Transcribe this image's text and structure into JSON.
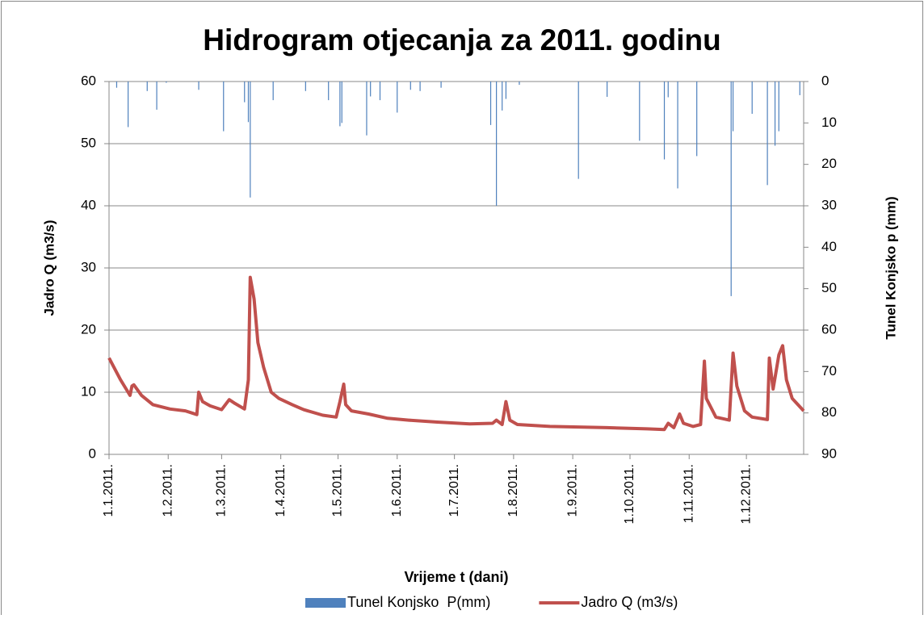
{
  "chart_data": {
    "type": "combo",
    "title": "Hidrogram otjecanja za 2011. godinu",
    "x_label": "Vrijeme t (dani)",
    "y_label": "Jadro Q (m3/s)",
    "y2_label": "Tunel Konjsko p (mm)",
    "xlim": [
      "2011-01-01",
      "2011-12-31"
    ],
    "xticks": [
      {
        "value": "2011-01-01",
        "label": "1.1.2011."
      },
      {
        "value": "2011-02-01",
        "label": "1.2.2011."
      },
      {
        "value": "2011-03-01",
        "label": "1.3.2011."
      },
      {
        "value": "2011-04-01",
        "label": "1.4.2011."
      },
      {
        "value": "2011-05-01",
        "label": "1.5.2011."
      },
      {
        "value": "2011-06-01",
        "label": "1.6.2011."
      },
      {
        "value": "2011-07-01",
        "label": "1.7.2011."
      },
      {
        "value": "2011-08-01",
        "label": "1.8.2011."
      },
      {
        "value": "2011-09-01",
        "label": "1.9.2011."
      },
      {
        "value": "2011-10-01",
        "label": "1.10.2011."
      },
      {
        "value": "2011-11-01",
        "label": "1.11.2011."
      },
      {
        "value": "2011-12-01",
        "label": "1.12.2011."
      }
    ],
    "ylim": [
      0,
      60
    ],
    "yticks": [
      0,
      10,
      20,
      30,
      40,
      50,
      60
    ],
    "y2lim": [
      90,
      0
    ],
    "y2ticks": [
      0,
      10,
      20,
      30,
      40,
      50,
      60,
      70,
      80,
      90
    ],
    "grid": true,
    "legend": "bottom",
    "series": [
      {
        "name": "Tunel Konjsko  P(mm)",
        "type": "bar",
        "axis": "y2",
        "color": "#4f81bd",
        "x": [
          "2011-01-05",
          "2011-01-11",
          "2011-01-21",
          "2011-01-26",
          "2011-01-31",
          "2011-02-17",
          "2011-03-02",
          "2011-03-13",
          "2011-03-15",
          "2011-03-16",
          "2011-03-28",
          "2011-04-14",
          "2011-04-26",
          "2011-05-02",
          "2011-05-03",
          "2011-05-16",
          "2011-05-18",
          "2011-05-23",
          "2011-06-01",
          "2011-06-08",
          "2011-06-13",
          "2011-06-24",
          "2011-07-20",
          "2011-07-23",
          "2011-07-26",
          "2011-07-28",
          "2011-08-04",
          "2011-09-04",
          "2011-09-19",
          "2011-10-06",
          "2011-10-19",
          "2011-10-21",
          "2011-10-26",
          "2011-11-05",
          "2011-11-23",
          "2011-11-24",
          "2011-12-04",
          "2011-12-12",
          "2011-12-16",
          "2011-12-18",
          "2011-12-29"
        ],
        "values": [
          1.5,
          11,
          2.3,
          6.8,
          0.3,
          2,
          12,
          5,
          9.8,
          28,
          4.5,
          2.3,
          4.5,
          10.8,
          10,
          13,
          3.6,
          4.5,
          7.5,
          2,
          2.3,
          1.5,
          10.5,
          30,
          7,
          4.2,
          0.8,
          23.5,
          3.7,
          14.3,
          18.8,
          3.8,
          25.8,
          18,
          51.8,
          12,
          7.8,
          25,
          15.5,
          12,
          3.3
        ]
      },
      {
        "name": "Jadro Q (m3/s)",
        "type": "line",
        "axis": "y",
        "color": "#c0504d",
        "x": [
          "2011-01-01",
          "2011-01-07",
          "2011-01-11",
          "2011-01-12",
          "2011-01-13",
          "2011-01-14",
          "2011-01-18",
          "2011-01-24",
          "2011-02-02",
          "2011-02-10",
          "2011-02-16",
          "2011-02-17",
          "2011-02-19",
          "2011-02-23",
          "2011-03-01",
          "2011-03-05",
          "2011-03-08",
          "2011-03-13",
          "2011-03-15",
          "2011-03-16",
          "2011-03-18",
          "2011-03-20",
          "2011-03-23",
          "2011-03-27",
          "2011-03-31",
          "2011-04-07",
          "2011-04-13",
          "2011-04-23",
          "2011-04-30",
          "2011-05-02",
          "2011-05-04",
          "2011-05-05",
          "2011-05-08",
          "2011-05-17",
          "2011-05-27",
          "2011-06-07",
          "2011-06-22",
          "2011-07-09",
          "2011-07-21",
          "2011-07-23",
          "2011-07-26",
          "2011-07-28",
          "2011-07-30",
          "2011-08-03",
          "2011-08-20",
          "2011-09-19",
          "2011-10-10",
          "2011-10-19",
          "2011-10-21",
          "2011-10-24",
          "2011-10-27",
          "2011-10-29",
          "2011-11-03",
          "2011-11-07",
          "2011-11-09",
          "2011-11-10",
          "2011-11-15",
          "2011-11-22",
          "2011-11-24",
          "2011-11-26",
          "2011-11-30",
          "2011-12-04",
          "2011-12-12",
          "2011-12-13",
          "2011-12-15",
          "2011-12-18",
          "2011-12-20",
          "2011-12-22",
          "2011-12-25",
          "2011-12-28",
          "2011-12-31"
        ],
        "values": [
          15.5,
          12,
          10,
          9.5,
          11,
          11.2,
          9.5,
          8,
          7.3,
          7,
          6.4,
          10,
          8.5,
          7.8,
          7.2,
          8.8,
          8.2,
          7.3,
          12,
          28.5,
          25,
          18,
          14,
          10,
          9,
          8,
          7.2,
          6.3,
          6,
          8.5,
          11.3,
          8,
          7,
          6.5,
          5.8,
          5.5,
          5.2,
          4.9,
          5,
          5.5,
          4.8,
          8.5,
          5.5,
          4.8,
          4.5,
          4.3,
          4.1,
          4,
          5,
          4.3,
          6.5,
          5,
          4.5,
          4.8,
          15,
          9,
          6,
          5.5,
          16.3,
          11,
          7,
          6,
          5.6,
          15.5,
          10.5,
          16,
          17.5,
          12,
          9,
          8,
          7
        ]
      }
    ]
  }
}
